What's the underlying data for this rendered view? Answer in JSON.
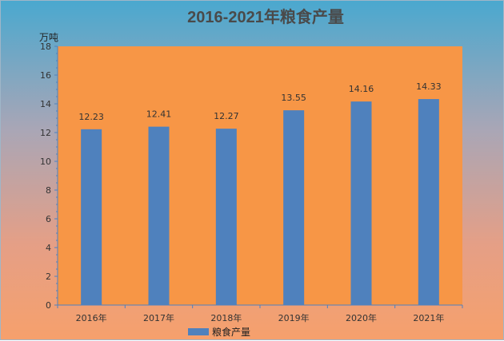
{
  "chart_data": {
    "type": "bar",
    "title": "2016-2021年粮食产量",
    "ylabel": "万吨",
    "xlabel": "",
    "categories": [
      "2016年",
      "2017年",
      "2018年",
      "2019年",
      "2020年",
      "2021年"
    ],
    "series": [
      {
        "name": "粮食产量",
        "values": [
          12.23,
          12.41,
          12.27,
          13.55,
          14.16,
          14.33
        ]
      }
    ],
    "data_labels": [
      "12.23",
      "12.41",
      "12.27",
      "13.55",
      "14.16",
      "14.33"
    ],
    "ylim": [
      0,
      18
    ],
    "y_ticks": [
      0,
      2,
      4,
      6,
      8,
      10,
      12,
      14,
      16,
      18
    ],
    "grid": false,
    "legend_position": "bottom",
    "colors": {
      "bar": "#4f81bd",
      "plot_background": "#f79646",
      "axis": "#4f81bd"
    }
  }
}
